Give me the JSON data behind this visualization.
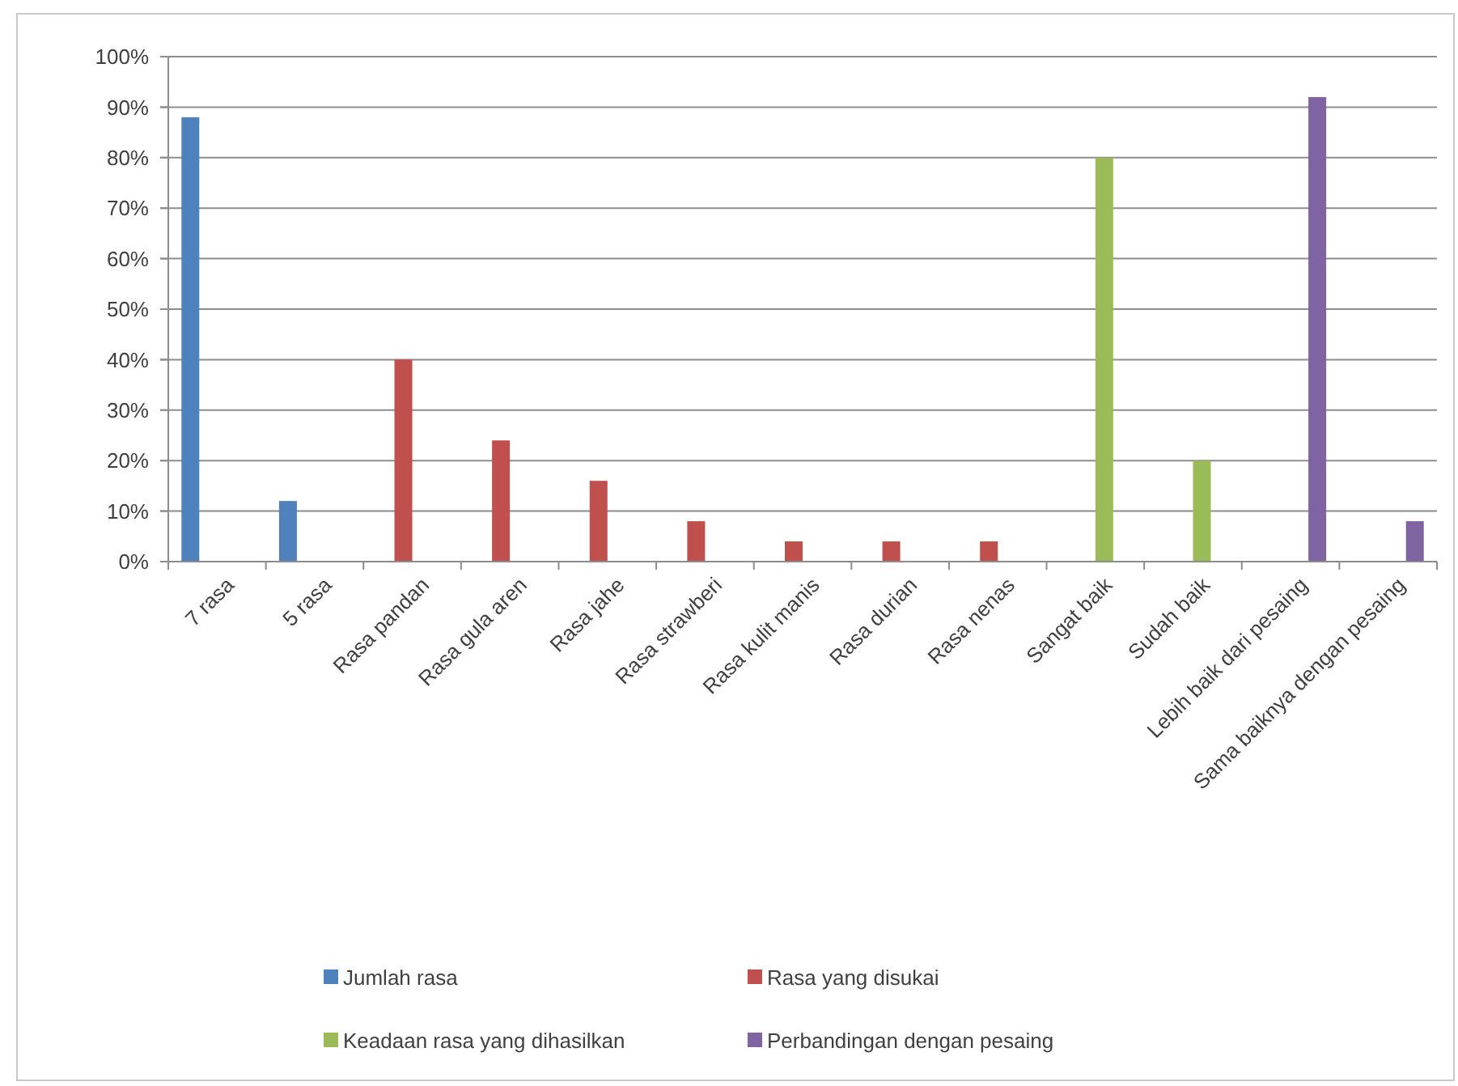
{
  "chart_data": {
    "type": "bar",
    "categories": [
      "7 rasa",
      "5 rasa",
      "Rasa pandan",
      "Rasa gula aren",
      "Rasa jahe",
      "Rasa strawberi",
      "Rasa kulit manis",
      "Rasa durian",
      "Rasa nenas",
      "Sangat baik",
      "Sudah baik",
      "Lebih baik dari pesaing",
      "Sama baiknya dengan pesaing"
    ],
    "series": [
      {
        "name": "Jumlah rasa",
        "color": "#4f81bd",
        "values": [
          88,
          12,
          null,
          null,
          null,
          null,
          null,
          null,
          null,
          null,
          null,
          null,
          null
        ]
      },
      {
        "name": "Rasa yang disukai",
        "color": "#c0504d",
        "values": [
          null,
          null,
          40,
          24,
          16,
          8,
          4,
          4,
          4,
          null,
          null,
          null,
          null
        ]
      },
      {
        "name": "Keadaan rasa yang dihasilkan",
        "color": "#9bbb59",
        "values": [
          null,
          null,
          null,
          null,
          null,
          null,
          null,
          null,
          null,
          80,
          20,
          null,
          null
        ]
      },
      {
        "name": "Perbandingan dengan pesaing",
        "color": "#8064a2",
        "values": [
          null,
          null,
          null,
          null,
          null,
          null,
          null,
          null,
          null,
          null,
          null,
          92,
          8
        ]
      }
    ],
    "ylim": [
      0,
      100
    ],
    "yticks": [
      {
        "value": 0,
        "label": "0%"
      },
      {
        "value": 10,
        "label": "10%"
      },
      {
        "value": 20,
        "label": "20%"
      },
      {
        "value": 30,
        "label": "30%"
      },
      {
        "value": 40,
        "label": "40%"
      },
      {
        "value": 50,
        "label": "50%"
      },
      {
        "value": 60,
        "label": "60%"
      },
      {
        "value": 70,
        "label": "70%"
      },
      {
        "value": 80,
        "label": "80%"
      },
      {
        "value": 90,
        "label": "90%"
      },
      {
        "value": 100,
        "label": "100%"
      }
    ],
    "grid": "y",
    "legend": "bottom"
  }
}
